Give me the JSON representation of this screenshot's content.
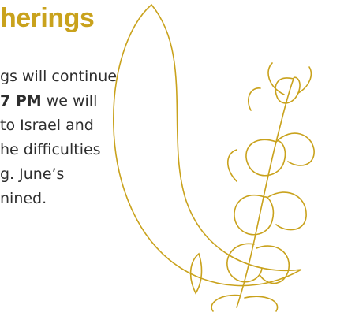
{
  "title": "herings",
  "paragraph": {
    "lines": [
      {
        "text": "gs will continue"
      },
      {
        "bold": "7 PM",
        "text": "we will"
      },
      {
        "text": "to Israel and"
      },
      {
        "text": "he difficulties"
      },
      {
        "text": "g. June’s"
      },
      {
        "text": "nined."
      }
    ]
  }
}
